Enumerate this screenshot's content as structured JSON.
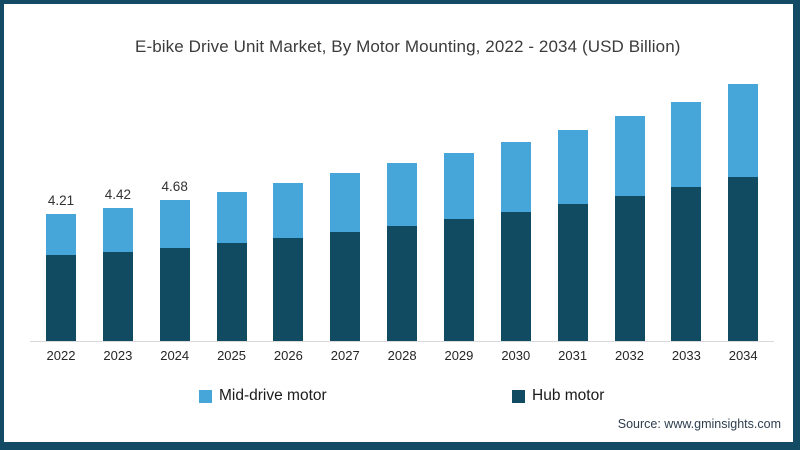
{
  "frame": {
    "border_color": "#134a64",
    "background": "#ffffff"
  },
  "title": "E-bike Drive Unit Market, By Motor Mounting, 2022 - 2034 (USD Billion)",
  "source": "Source: www.gminsights.com",
  "legend": [
    {
      "label": "Mid-drive motor",
      "color": "#46a6d9"
    },
    {
      "label": "Hub motor",
      "color": "#114b61"
    }
  ],
  "chart_data": {
    "type": "bar",
    "stacked": true,
    "title": "E-bike Drive Unit Market, By Motor Mounting, 2022 - 2034 (USD Billion)",
    "xlabel": "",
    "ylabel": "USD Billion",
    "ylim": [
      0,
      9
    ],
    "grid": false,
    "legend_position": "bottom",
    "categories": [
      "2022",
      "2023",
      "2024",
      "2025",
      "2026",
      "2027",
      "2028",
      "2029",
      "2030",
      "2031",
      "2032",
      "2033",
      "2034"
    ],
    "series": [
      {
        "name": "Hub motor",
        "color": "#114b61",
        "values": [
          2.84,
          2.95,
          3.08,
          3.24,
          3.42,
          3.62,
          3.82,
          4.05,
          4.28,
          4.52,
          4.8,
          5.1,
          5.42
        ]
      },
      {
        "name": "Mid-drive motor",
        "color": "#46a6d9",
        "values": [
          1.37,
          1.47,
          1.6,
          1.68,
          1.8,
          1.93,
          2.06,
          2.16,
          2.32,
          2.46,
          2.64,
          2.83,
          3.08
        ]
      }
    ],
    "totals": [
      4.21,
      4.42,
      4.68,
      4.92,
      5.22,
      5.55,
      5.88,
      6.21,
      6.6,
      6.98,
      7.44,
      7.93,
      8.5
    ],
    "data_labels": [
      "4.21",
      "4.42",
      "4.68",
      "",
      "",
      "",
      "",
      "",
      "",
      "",
      "",
      "",
      ""
    ]
  }
}
